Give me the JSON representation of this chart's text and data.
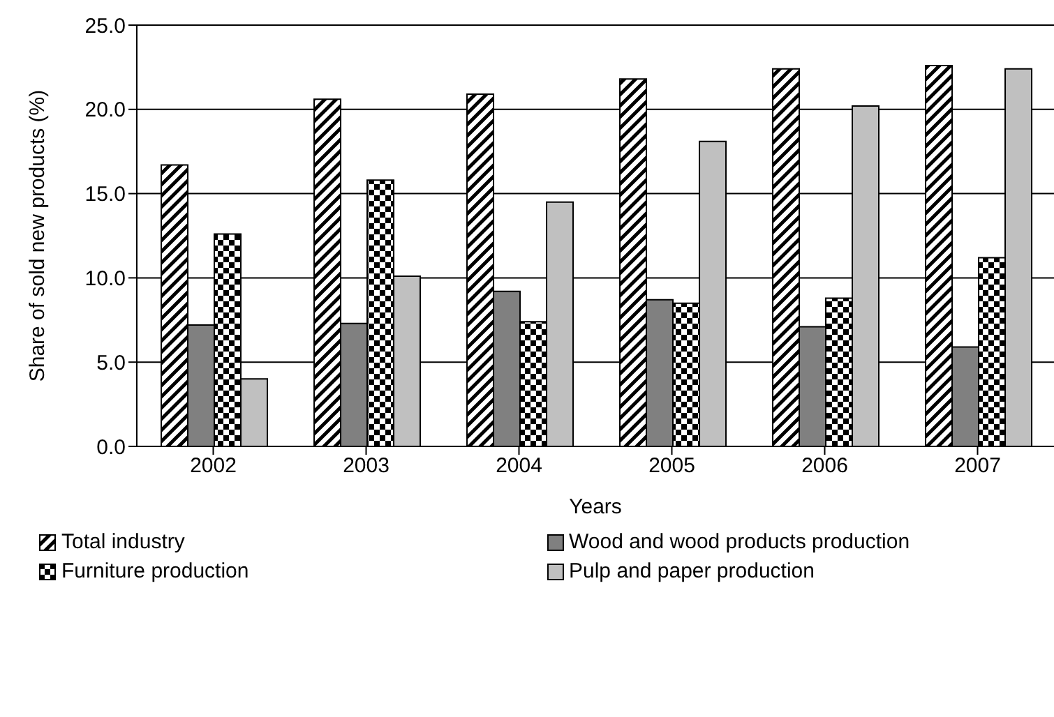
{
  "chart_data": {
    "type": "bar",
    "xlabel": "Years",
    "ylabel": "Share of sold new products (%)",
    "categories": [
      "2002",
      "2003",
      "2004",
      "2005",
      "2006",
      "2007"
    ],
    "series": [
      {
        "name": "Total industry",
        "color": "#000000",
        "values": [
          16.7,
          20.6,
          20.9,
          21.8,
          22.4,
          22.6
        ]
      },
      {
        "name": "Wood and wood products production",
        "color": "#808080",
        "values": [
          7.2,
          7.3,
          9.2,
          8.7,
          7.1,
          5.9
        ]
      },
      {
        "name": "Furniture production",
        "color": "#000000",
        "values": [
          12.6,
          15.8,
          7.4,
          8.5,
          8.8,
          11.2
        ]
      },
      {
        "name": "Pulp and paper production",
        "color": "#c0c0c0",
        "values": [
          4.0,
          10.1,
          14.5,
          18.1,
          20.2,
          22.4
        ]
      }
    ],
    "ylim": [
      0,
      25
    ],
    "yticks": [
      {
        "value": 0,
        "label": "0.0"
      },
      {
        "value": 5,
        "label": "5.0"
      },
      {
        "value": 10,
        "label": "10.0"
      },
      {
        "value": 15,
        "label": "15.0"
      },
      {
        "value": 20,
        "label": "20.0"
      },
      {
        "value": 25,
        "label": "25.0"
      }
    ],
    "grid": "y",
    "legend": "bottom"
  }
}
